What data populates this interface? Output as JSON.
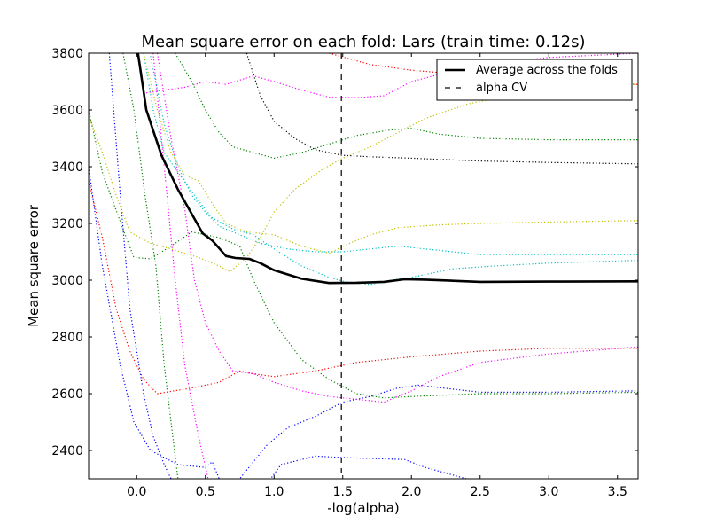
{
  "chart_data": {
    "type": "line",
    "title": "Mean square error on each fold: Lars (train time: 0.12s)",
    "xlabel": "-log(alpha)",
    "ylabel": "Mean square error",
    "xlim": [
      -0.35,
      3.65
    ],
    "ylim": [
      2300,
      3800
    ],
    "xticks": [
      0.0,
      0.5,
      1.0,
      1.5,
      2.0,
      2.5,
      3.0,
      3.5
    ],
    "xtick_labels": [
      "0.0",
      "0.5",
      "1.0",
      "1.5",
      "2.0",
      "2.5",
      "3.0",
      "3.5"
    ],
    "yticks": [
      2400,
      2600,
      2800,
      3000,
      3200,
      3400,
      3600,
      3800
    ],
    "ytick_labels": [
      "2400",
      "2600",
      "2800",
      "3000",
      "3200",
      "3400",
      "3600",
      "3800"
    ],
    "grid": false,
    "legend": {
      "placement": "top-right",
      "entries": [
        "Average across the folds",
        "alpha CV"
      ]
    },
    "alpha_cv": 1.49,
    "average": {
      "color": "#000000",
      "points": [
        [
          0.0,
          3830
        ],
        [
          0.07,
          3600
        ],
        [
          0.18,
          3440
        ],
        [
          0.3,
          3320
        ],
        [
          0.48,
          3165
        ],
        [
          0.55,
          3140
        ],
        [
          0.65,
          3085
        ],
        [
          0.72,
          3078
        ],
        [
          0.82,
          3075
        ],
        [
          0.9,
          3060
        ],
        [
          1.0,
          3035
        ],
        [
          1.2,
          3005
        ],
        [
          1.4,
          2990
        ],
        [
          1.6,
          2991
        ],
        [
          1.8,
          2994
        ],
        [
          1.95,
          3003
        ],
        [
          2.1,
          3002
        ],
        [
          2.5,
          2994
        ],
        [
          3.0,
          2995
        ],
        [
          3.65,
          2996
        ]
      ]
    },
    "folds": [
      {
        "color": "#0000ff",
        "points": [
          [
            -0.35,
            3400
          ],
          [
            -0.25,
            3050
          ],
          [
            -0.12,
            2700
          ],
          [
            -0.02,
            2500
          ],
          [
            0.1,
            2400
          ],
          [
            0.3,
            2350
          ],
          [
            0.5,
            2340
          ],
          [
            0.55,
            2360
          ],
          [
            0.6,
            2300
          ]
        ]
      },
      {
        "color": "#0000ff",
        "points": [
          [
            0.55,
            2250
          ],
          [
            0.75,
            2300
          ],
          [
            0.95,
            2420
          ],
          [
            1.1,
            2480
          ],
          [
            1.3,
            2520
          ],
          [
            1.5,
            2570
          ],
          [
            1.7,
            2590
          ],
          [
            1.9,
            2620
          ],
          [
            2.05,
            2630
          ],
          [
            2.5,
            2605
          ],
          [
            3.0,
            2605
          ],
          [
            3.65,
            2610
          ]
        ]
      },
      {
        "color": "#0000ff",
        "points": [
          [
            0.9,
            2250
          ],
          [
            1.05,
            2350
          ],
          [
            1.3,
            2380
          ],
          [
            1.5,
            2375
          ],
          [
            1.7,
            2372
          ],
          [
            1.95,
            2368
          ],
          [
            2.1,
            2340
          ],
          [
            2.4,
            2300
          ]
        ]
      },
      {
        "color": "#0000ff",
        "points": [
          [
            -0.2,
            3800
          ],
          [
            -0.12,
            3300
          ],
          [
            -0.05,
            2900
          ],
          [
            0.05,
            2600
          ],
          [
            0.12,
            2450
          ],
          [
            0.2,
            2350
          ],
          [
            0.25,
            2300
          ]
        ]
      },
      {
        "color": "#008000",
        "points": [
          [
            -0.35,
            3600
          ],
          [
            -0.25,
            3380
          ],
          [
            -0.1,
            3180
          ],
          [
            -0.02,
            3080
          ],
          [
            0.1,
            3075
          ],
          [
            0.25,
            3120
          ],
          [
            0.4,
            3170
          ],
          [
            0.6,
            3150
          ],
          [
            0.75,
            3120
          ],
          [
            0.85,
            3000
          ],
          [
            1.0,
            2850
          ],
          [
            1.2,
            2720
          ],
          [
            1.4,
            2650
          ],
          [
            1.6,
            2600
          ],
          [
            1.8,
            2585
          ],
          [
            2.0,
            2590
          ],
          [
            2.5,
            2600
          ],
          [
            3.0,
            2600
          ],
          [
            3.65,
            2605
          ]
        ]
      },
      {
        "color": "#008000",
        "points": [
          [
            0.28,
            3800
          ],
          [
            0.4,
            3700
          ],
          [
            0.5,
            3600
          ],
          [
            0.6,
            3520
          ],
          [
            0.7,
            3470
          ],
          [
            0.85,
            3450
          ],
          [
            1.0,
            3430
          ],
          [
            1.2,
            3450
          ],
          [
            1.4,
            3480
          ],
          [
            1.6,
            3510
          ],
          [
            1.85,
            3530
          ],
          [
            2.0,
            3535
          ],
          [
            2.2,
            3515
          ],
          [
            2.5,
            3500
          ],
          [
            3.0,
            3495
          ],
          [
            3.65,
            3495
          ]
        ]
      },
      {
        "color": "#008000",
        "points": [
          [
            -0.1,
            3800
          ],
          [
            -0.02,
            3600
          ],
          [
            0.06,
            3300
          ],
          [
            0.14,
            3050
          ],
          [
            0.2,
            2700
          ],
          [
            0.25,
            2500
          ],
          [
            0.3,
            2300
          ]
        ]
      },
      {
        "color": "#ff0000",
        "points": [
          [
            -0.35,
            3350
          ],
          [
            -0.25,
            3150
          ],
          [
            -0.15,
            2900
          ],
          [
            -0.05,
            2750
          ],
          [
            0.05,
            2650
          ],
          [
            0.15,
            2600
          ],
          [
            0.4,
            2620
          ],
          [
            0.6,
            2640
          ],
          [
            0.75,
            2680
          ],
          [
            0.85,
            2670
          ],
          [
            1.0,
            2660
          ],
          [
            1.3,
            2680
          ],
          [
            1.6,
            2710
          ],
          [
            2.0,
            2730
          ],
          [
            2.5,
            2750
          ],
          [
            3.0,
            2760
          ],
          [
            3.65,
            2760
          ]
        ]
      },
      {
        "color": "#ff0000",
        "points": [
          [
            1.4,
            3800
          ],
          [
            1.55,
            3780
          ],
          [
            1.7,
            3760
          ],
          [
            2.0,
            3740
          ],
          [
            2.5,
            3720
          ],
          [
            3.0,
            3700
          ],
          [
            3.65,
            3690
          ]
        ]
      },
      {
        "color": "#ff00ff",
        "points": [
          [
            0.07,
            3660
          ],
          [
            0.2,
            3670
          ],
          [
            0.35,
            3680
          ],
          [
            0.5,
            3700
          ],
          [
            0.65,
            3690
          ],
          [
            0.85,
            3720
          ],
          [
            1.0,
            3700
          ],
          [
            1.2,
            3670
          ],
          [
            1.4,
            3645
          ],
          [
            1.6,
            3643
          ],
          [
            1.8,
            3650
          ],
          [
            2.0,
            3700
          ],
          [
            2.2,
            3725
          ],
          [
            2.5,
            3760
          ],
          [
            3.0,
            3785
          ],
          [
            3.65,
            3800
          ]
        ]
      },
      {
        "color": "#ff00ff",
        "points": [
          [
            0.15,
            3800
          ],
          [
            0.25,
            3500
          ],
          [
            0.35,
            3250
          ],
          [
            0.42,
            3000
          ],
          [
            0.5,
            2850
          ],
          [
            0.6,
            2750
          ],
          [
            0.7,
            2680
          ],
          [
            0.85,
            2670
          ],
          [
            1.0,
            2640
          ],
          [
            1.2,
            2610
          ],
          [
            1.4,
            2590
          ],
          [
            1.6,
            2580
          ],
          [
            1.8,
            2570
          ],
          [
            2.0,
            2610
          ],
          [
            2.2,
            2660
          ],
          [
            2.5,
            2710
          ],
          [
            3.0,
            2740
          ],
          [
            3.65,
            2765
          ]
        ]
      },
      {
        "color": "#ff00ff",
        "points": [
          [
            0.12,
            3800
          ],
          [
            0.2,
            3400
          ],
          [
            0.28,
            3000
          ],
          [
            0.35,
            2700
          ],
          [
            0.45,
            2450
          ],
          [
            0.52,
            2300
          ]
        ]
      },
      {
        "color": "#00bfbf",
        "points": [
          [
            0.05,
            3800
          ],
          [
            0.12,
            3600
          ],
          [
            0.2,
            3450
          ],
          [
            0.3,
            3380
          ],
          [
            0.45,
            3280
          ],
          [
            0.55,
            3220
          ],
          [
            0.7,
            3180
          ],
          [
            0.85,
            3160
          ],
          [
            1.0,
            3110
          ],
          [
            1.2,
            3050
          ],
          [
            1.4,
            3010
          ],
          [
            1.55,
            2990
          ],
          [
            1.7,
            2985
          ],
          [
            1.85,
            3000
          ],
          [
            2.0,
            3010
          ],
          [
            2.3,
            3040
          ],
          [
            2.6,
            3050
          ],
          [
            3.0,
            3060
          ],
          [
            3.65,
            3070
          ]
        ]
      },
      {
        "color": "#00bfbf",
        "points": [
          [
            0.1,
            3790
          ],
          [
            0.2,
            3550
          ],
          [
            0.3,
            3400
          ],
          [
            0.4,
            3300
          ],
          [
            0.5,
            3240
          ],
          [
            0.6,
            3190
          ],
          [
            0.75,
            3160
          ],
          [
            0.9,
            3130
          ],
          [
            1.1,
            3110
          ],
          [
            1.3,
            3100
          ],
          [
            1.5,
            3100
          ],
          [
            1.7,
            3110
          ],
          [
            1.9,
            3120
          ],
          [
            2.1,
            3110
          ],
          [
            2.5,
            3090
          ],
          [
            3.0,
            3090
          ],
          [
            3.65,
            3090
          ]
        ]
      },
      {
        "color": "#bfbf00",
        "points": [
          [
            0.05,
            3800
          ],
          [
            0.15,
            3600
          ],
          [
            0.25,
            3450
          ],
          [
            0.35,
            3370
          ],
          [
            0.45,
            3350
          ],
          [
            0.55,
            3270
          ],
          [
            0.65,
            3200
          ],
          [
            0.8,
            3170
          ],
          [
            1.0,
            3160
          ],
          [
            1.2,
            3120
          ],
          [
            1.4,
            3095
          ],
          [
            1.55,
            3130
          ],
          [
            1.7,
            3160
          ],
          [
            1.9,
            3185
          ],
          [
            2.2,
            3195
          ],
          [
            2.5,
            3200
          ],
          [
            3.0,
            3205
          ],
          [
            3.65,
            3210
          ]
        ]
      },
      {
        "color": "#bfbf00",
        "points": [
          [
            -0.35,
            3580
          ],
          [
            -0.25,
            3450
          ],
          [
            -0.15,
            3300
          ],
          [
            -0.05,
            3170
          ],
          [
            0.1,
            3130
          ],
          [
            0.25,
            3110
          ],
          [
            0.45,
            3080
          ],
          [
            0.6,
            3050
          ],
          [
            0.68,
            3030
          ],
          [
            0.8,
            3080
          ],
          [
            0.9,
            3150
          ],
          [
            1.0,
            3240
          ],
          [
            1.15,
            3320
          ],
          [
            1.35,
            3390
          ],
          [
            1.5,
            3430
          ],
          [
            1.7,
            3470
          ],
          [
            1.9,
            3520
          ],
          [
            2.1,
            3570
          ],
          [
            2.4,
            3620
          ],
          [
            2.7,
            3650
          ],
          [
            3.0,
            3670
          ],
          [
            3.65,
            3690
          ]
        ]
      },
      {
        "color": "#000000",
        "points": [
          [
            0.8,
            3800
          ],
          [
            0.9,
            3650
          ],
          [
            1.0,
            3560
          ],
          [
            1.15,
            3500
          ],
          [
            1.3,
            3460
          ],
          [
            1.5,
            3440
          ],
          [
            1.7,
            3435
          ],
          [
            2.0,
            3430
          ],
          [
            2.5,
            3420
          ],
          [
            3.0,
            3415
          ],
          [
            3.65,
            3410
          ]
        ]
      }
    ]
  }
}
